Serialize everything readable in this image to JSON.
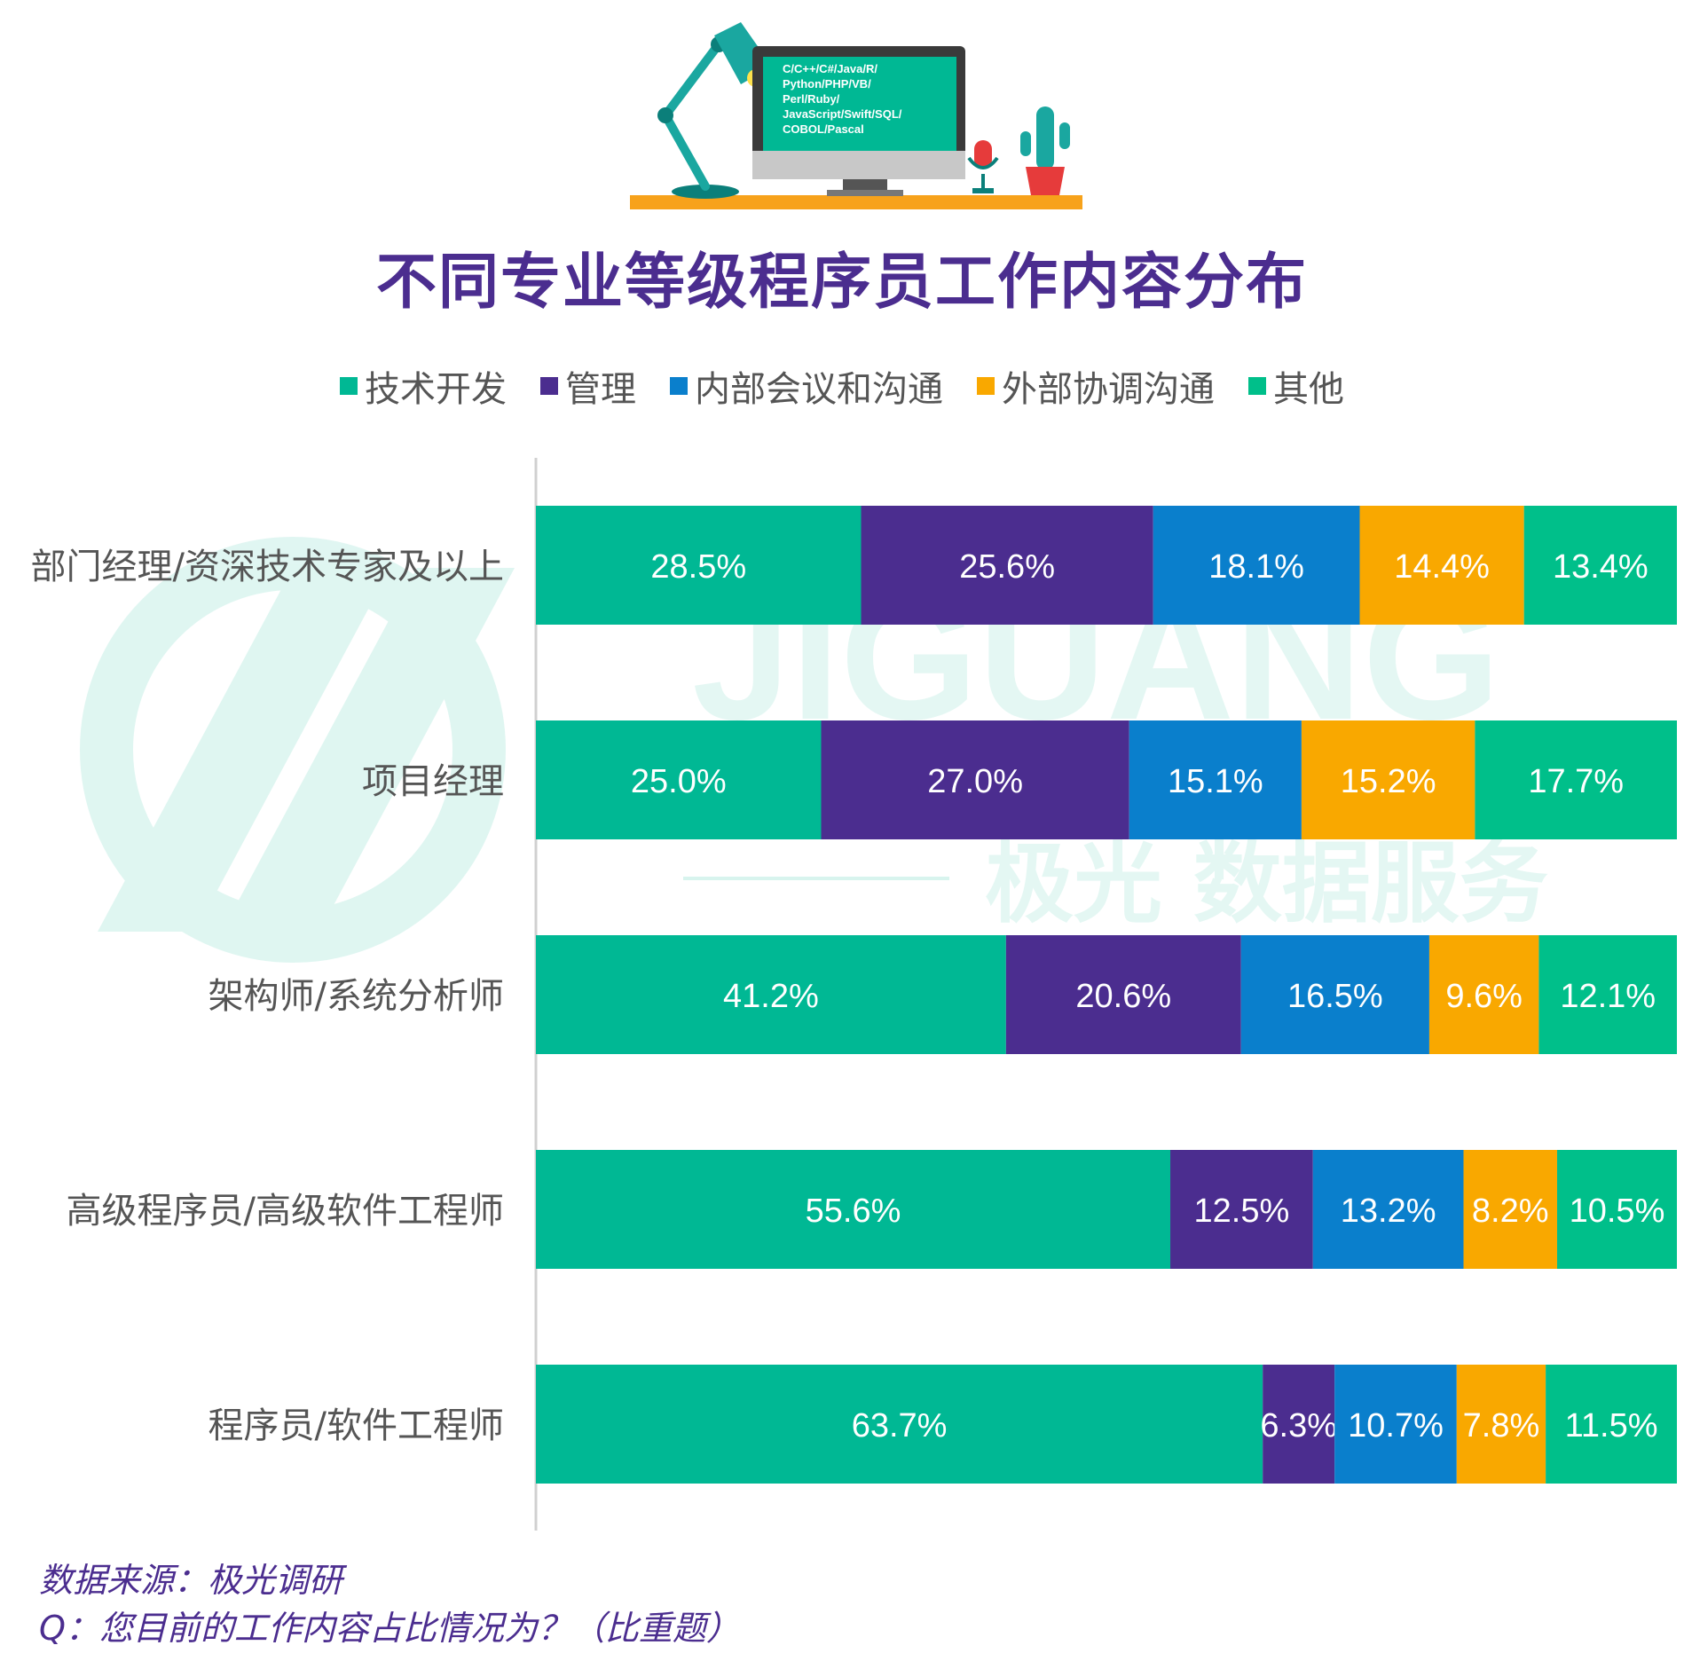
{
  "illustration": {
    "screen_lines": [
      "C/C++/C#/Java/R/",
      "Python/PHP/VB/",
      "Perl/Ruby/",
      "JavaScript/Swift/SQL/",
      "COBOL/Pascal"
    ]
  },
  "watermark": {
    "logo_text": "JIGUANG",
    "sub_text": "极光 数据服务"
  },
  "footnotes": {
    "source": "数据来源：极光调研",
    "question": "Q：您目前的工作内容占比情况为？（比重题）"
  },
  "chart_data": {
    "type": "bar",
    "orientation": "horizontal",
    "stacked": true,
    "title": "不同专业等级程序员工作内容分布",
    "xlim": [
      0,
      100
    ],
    "legend_position": "top",
    "categories": [
      "部门经理/资深技术专家及以上",
      "项目经理",
      "架构师/系统分析师",
      "高级程序员/高级软件工程师",
      "程序员/软件工程师"
    ],
    "series": [
      {
        "name": "技术开发",
        "color": "#00b894",
        "values": [
          28.5,
          25.0,
          41.2,
          55.6,
          63.7
        ],
        "labels": [
          "28.5%",
          "25.0%",
          "41.2%",
          "55.6%",
          "63.7%"
        ]
      },
      {
        "name": "管理",
        "color": "#4b2d8f",
        "values": [
          25.6,
          27.0,
          20.6,
          12.5,
          6.3
        ],
        "labels": [
          "25.6%",
          "27.0%",
          "20.6%",
          "12.5%",
          "6.3%"
        ]
      },
      {
        "name": "内部会议和沟通",
        "color": "#0a7fcc",
        "values": [
          18.1,
          15.1,
          16.5,
          13.2,
          10.7
        ],
        "labels": [
          "18.1%",
          "15.1%",
          "16.5%",
          "13.2%",
          "10.7%"
        ]
      },
      {
        "name": "外部协调沟通",
        "color": "#f9a800",
        "values": [
          14.4,
          15.2,
          9.6,
          8.2,
          7.8
        ],
        "labels": [
          "14.4%",
          "15.2%",
          "9.6%",
          "8.2%",
          "7.8%"
        ]
      },
      {
        "name": "其他",
        "color": "#00bf8a",
        "values": [
          13.4,
          17.7,
          12.1,
          10.5,
          11.5
        ],
        "labels": [
          "13.4%",
          "17.7%",
          "12.1%",
          "10.5%",
          "11.5%"
        ]
      }
    ]
  }
}
